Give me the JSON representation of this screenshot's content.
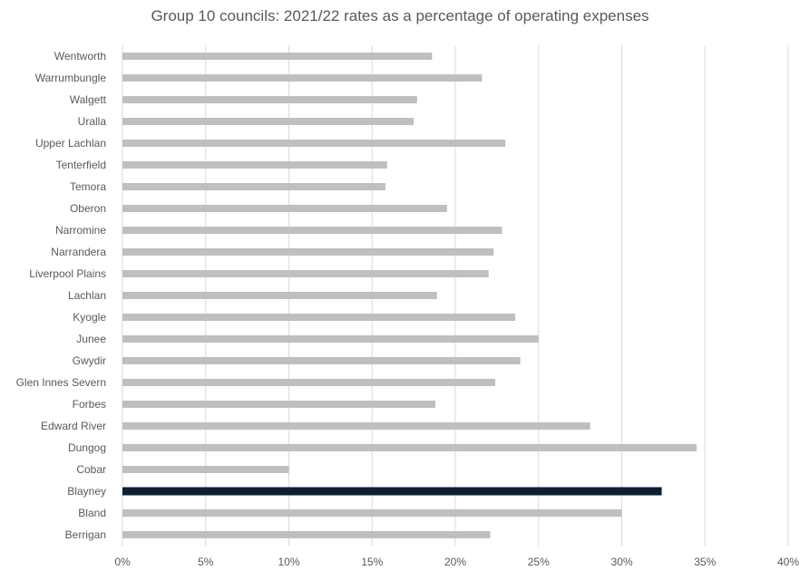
{
  "chart_data": {
    "type": "bar",
    "orientation": "horizontal",
    "title": "Group 10 councils: 2021/22 rates as a percentage of operating expenses",
    "xlabel": "",
    "ylabel": "",
    "xlim": [
      0,
      40
    ],
    "x_ticks": [
      "0%",
      "5%",
      "10%",
      "15%",
      "20%",
      "25%",
      "30%",
      "35%",
      "40%"
    ],
    "x_tick_values": [
      0,
      5,
      10,
      15,
      20,
      25,
      30,
      35,
      40
    ],
    "grid": "vertical",
    "legend": "none",
    "default_color": "#bfbfbf",
    "highlight_color": "#0d1f35",
    "highlight_category": "Blayney",
    "categories": [
      "Wentworth",
      "Warrumbungle",
      "Walgett",
      "Uralla",
      "Upper Lachlan",
      "Tenterfield",
      "Temora",
      "Oberon",
      "Narromine",
      "Narrandera",
      "Liverpool Plains",
      "Lachlan",
      "Kyogle",
      "Junee",
      "Gwydir",
      "Glen Innes Severn",
      "Forbes",
      "Edward River",
      "Dungog",
      "Cobar",
      "Blayney",
      "Bland",
      "Berrigan"
    ],
    "values": [
      18.6,
      21.6,
      17.7,
      17.5,
      23.0,
      15.9,
      15.8,
      19.5,
      22.8,
      22.3,
      22.0,
      18.9,
      23.6,
      25.0,
      23.9,
      22.4,
      18.8,
      28.1,
      34.5,
      10.0,
      32.4,
      30.0,
      22.1
    ]
  }
}
